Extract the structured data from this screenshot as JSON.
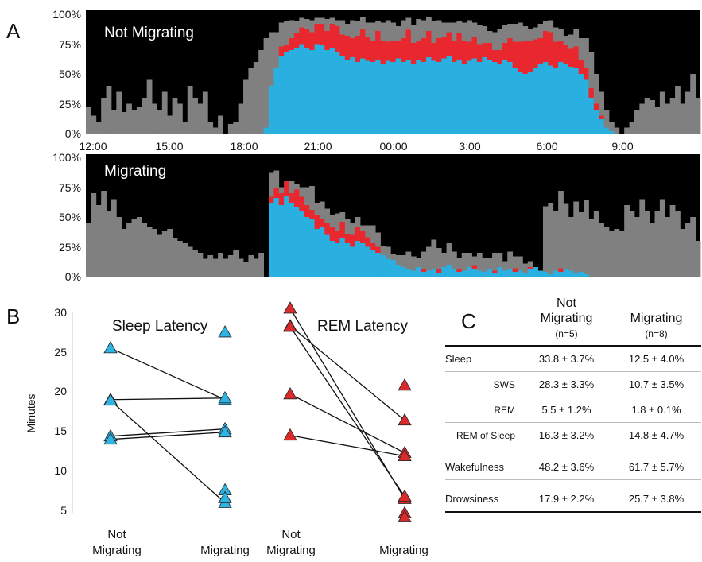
{
  "colors": {
    "background": "#000000",
    "wake": "#808080",
    "sws": "#29b0e0",
    "rem": "#e8282e",
    "marker_blue": "#2fb3e3",
    "marker_red": "#d92b2b"
  },
  "panel_a": {
    "letter": "A",
    "y_ticks": [
      "100%",
      "75%",
      "50%",
      "25%",
      "0%"
    ],
    "x_ticks": [
      "12:00",
      "15:00",
      "18:00",
      "21:00",
      "00:00",
      "3:00",
      "6:00",
      "9:00"
    ]
  },
  "panel_b": {
    "letter": "B",
    "ylabel": "Minutes",
    "y_ticks": [
      "30",
      "25",
      "20",
      "15",
      "10",
      "5"
    ],
    "cat_not_line1": "Not",
    "cat_not_line2": "Migrating",
    "cat_mig": "Migrating"
  },
  "table": {
    "letter": "C",
    "col1_line1": "Not",
    "col1_line2": "Migrating",
    "col1_n": "(n=5)",
    "col2": "Migrating",
    "col2_n": "(n=8)",
    "rows": [
      {
        "label": "Sleep",
        "not": "33.8 ± 3.7%",
        "mig": "12.5 ± 4.0%"
      },
      {
        "label": "SWS",
        "not": "28.3 ± 3.3%",
        "mig": "10.7 ± 3.5%"
      },
      {
        "label": "REM",
        "not": "5.5 ± 1.2%",
        "mig": "1.8 ± 0.1%"
      },
      {
        "label": "REM of Sleep",
        "not": "16.3 ± 3.2%",
        "mig": "14.8 ± 4.7%"
      },
      {
        "label": "Wakefulness",
        "not": "48.2 ± 3.6%",
        "mig": "61.7 ± 5.7%"
      },
      {
        "label": "Drowsiness",
        "not": "17.9 ± 2.2%",
        "mig": "25.7 ± 3.8%"
      }
    ]
  },
  "chart_data": [
    {
      "type": "area",
      "title": "Not Migrating",
      "x_range_hours": [
        12,
        36
      ],
      "ylim": [
        0,
        100
      ],
      "bin_hours": 0.2,
      "series": [
        {
          "name": "SWS",
          "values": [
            0,
            0,
            0,
            0,
            0,
            0,
            0,
            0,
            0,
            0,
            0,
            0,
            0,
            0,
            0,
            0,
            0,
            0,
            0,
            0,
            0,
            0,
            0,
            0,
            0,
            0,
            0,
            0,
            0,
            0,
            0,
            0,
            0,
            0,
            0,
            5,
            40,
            55,
            65,
            68,
            70,
            72,
            75,
            72,
            70,
            75,
            74,
            70,
            72,
            68,
            65,
            62,
            64,
            60,
            63,
            61,
            60,
            62,
            58,
            61,
            60,
            63,
            60,
            62,
            58,
            62,
            60,
            64,
            61,
            60,
            63,
            65,
            60,
            62,
            58,
            61,
            63,
            60,
            64,
            62,
            60,
            58,
            62,
            60,
            55,
            52,
            50,
            52,
            55,
            58,
            60,
            57,
            55,
            60,
            58,
            56,
            55,
            50,
            45,
            30,
            20,
            12,
            5,
            2,
            0,
            0,
            0,
            0,
            0,
            0,
            0,
            0,
            0,
            0,
            0,
            0,
            0,
            0,
            0,
            0,
            0
          ]
        },
        {
          "name": "REM",
          "values": [
            0,
            0,
            0,
            0,
            0,
            0,
            0,
            0,
            0,
            0,
            0,
            0,
            0,
            0,
            0,
            0,
            0,
            0,
            0,
            0,
            0,
            0,
            0,
            0,
            0,
            0,
            0,
            0,
            0,
            0,
            0,
            0,
            0,
            0,
            0,
            0,
            0,
            0,
            8,
            6,
            10,
            12,
            14,
            16,
            15,
            17,
            18,
            16,
            20,
            22,
            18,
            20,
            16,
            22,
            25,
            20,
            18,
            24,
            20,
            16,
            18,
            15,
            20,
            25,
            18,
            16,
            20,
            22,
            15,
            20,
            18,
            20,
            18,
            22,
            20,
            16,
            18,
            15,
            12,
            14,
            10,
            12,
            14,
            20,
            22,
            25,
            28,
            26,
            24,
            22,
            26,
            28,
            22,
            18,
            16,
            15,
            18,
            12,
            10,
            8,
            5,
            3,
            0,
            0,
            0,
            0,
            0,
            0,
            0,
            0,
            0,
            0,
            0,
            0,
            0,
            0,
            0,
            0,
            0,
            0,
            0
          ]
        },
        {
          "name": "Wake",
          "values": [
            22,
            15,
            10,
            30,
            40,
            20,
            35,
            18,
            25,
            20,
            22,
            30,
            45,
            25,
            20,
            35,
            15,
            30,
            25,
            10,
            40,
            30,
            25,
            35,
            10,
            5,
            15,
            0,
            8,
            10,
            25,
            45,
            55,
            60,
            70,
            75,
            45,
            30,
            20,
            20,
            15,
            10,
            8,
            8,
            10,
            5,
            5,
            10,
            5,
            5,
            12,
            10,
            15,
            12,
            10,
            12,
            15,
            8,
            15,
            18,
            15,
            12,
            15,
            10,
            15,
            18,
            15,
            12,
            18,
            15,
            12,
            8,
            15,
            10,
            15,
            18,
            12,
            16,
            14,
            10,
            15,
            18,
            15,
            12,
            15,
            16,
            12,
            10,
            10,
            12,
            8,
            10,
            12,
            10,
            8,
            12,
            15,
            18,
            25,
            30,
            25,
            20,
            15,
            8,
            5,
            0,
            5,
            10,
            20,
            25,
            30,
            28,
            22,
            35,
            25,
            30,
            40,
            25,
            35,
            50,
            30
          ]
        }
      ]
    },
    {
      "type": "area",
      "title": "Migrating",
      "x_range_hours": [
        12,
        36
      ],
      "ylim": [
        0,
        100
      ],
      "bin_hours": 0.2,
      "series": [
        {
          "name": "SWS",
          "values": [
            0,
            0,
            0,
            0,
            0,
            0,
            0,
            0,
            0,
            0,
            0,
            0,
            0,
            0,
            0,
            0,
            0,
            0,
            0,
            0,
            0,
            0,
            0,
            0,
            0,
            0,
            0,
            0,
            0,
            0,
            0,
            0,
            0,
            0,
            0,
            0,
            62,
            66,
            60,
            68,
            62,
            58,
            55,
            50,
            48,
            40,
            42,
            35,
            30,
            28,
            32,
            28,
            25,
            30,
            28,
            25,
            22,
            20,
            18,
            15,
            14,
            10,
            8,
            6,
            5,
            8,
            4,
            5,
            6,
            3,
            8,
            10,
            6,
            4,
            5,
            8,
            6,
            5,
            4,
            6,
            3,
            8,
            5,
            6,
            4,
            5,
            3,
            6,
            8,
            5,
            4,
            2,
            5,
            4,
            6,
            5,
            3,
            4,
            2,
            0,
            0,
            0,
            0,
            0,
            0,
            0,
            0,
            0,
            0,
            0,
            0,
            0,
            0,
            0,
            0,
            0,
            0,
            0,
            0,
            0,
            0
          ]
        },
        {
          "name": "REM",
          "values": [
            0,
            0,
            0,
            0,
            0,
            0,
            0,
            0,
            0,
            0,
            0,
            0,
            0,
            0,
            0,
            0,
            0,
            0,
            0,
            0,
            0,
            0,
            0,
            0,
            0,
            0,
            0,
            0,
            0,
            0,
            0,
            0,
            0,
            0,
            0,
            0,
            5,
            8,
            10,
            12,
            8,
            15,
            12,
            10,
            8,
            12,
            6,
            10,
            12,
            10,
            14,
            8,
            10,
            12,
            10,
            8,
            6,
            5,
            0,
            0,
            0,
            0,
            0,
            0,
            0,
            0,
            2,
            0,
            0,
            3,
            0,
            0,
            0,
            2,
            0,
            0,
            3,
            0,
            0,
            0,
            2,
            0,
            0,
            0,
            3,
            0,
            0,
            2,
            0,
            0,
            0,
            0,
            0,
            3,
            0,
            0,
            0,
            0,
            0,
            0,
            0,
            0,
            0,
            0,
            0,
            0,
            0,
            0,
            0,
            0,
            0,
            0,
            0,
            0,
            0,
            0,
            0,
            0,
            0,
            0,
            0
          ]
        },
        {
          "name": "Wake",
          "values": [
            45,
            70,
            60,
            72,
            55,
            65,
            50,
            40,
            45,
            48,
            50,
            45,
            42,
            40,
            35,
            38,
            40,
            32,
            30,
            28,
            25,
            22,
            20,
            15,
            18,
            15,
            20,
            15,
            18,
            22,
            15,
            12,
            18,
            15,
            20,
            0,
            20,
            15,
            5,
            0,
            10,
            5,
            8,
            15,
            20,
            10,
            15,
            12,
            10,
            15,
            8,
            12,
            10,
            8,
            5,
            10,
            15,
            12,
            8,
            10,
            5,
            8,
            10,
            15,
            12,
            8,
            15,
            20,
            25,
            18,
            12,
            18,
            15,
            10,
            15,
            12,
            8,
            15,
            12,
            10,
            15,
            12,
            8,
            15,
            10,
            12,
            8,
            5,
            0,
            0,
            55,
            60,
            50,
            65,
            55,
            45,
            60,
            50,
            62,
            48,
            55,
            45,
            42,
            38,
            40,
            38,
            60,
            55,
            50,
            65,
            55,
            45,
            55,
            65,
            50,
            60,
            55,
            40,
            45,
            50,
            30
          ]
        }
      ]
    },
    {
      "type": "scatter",
      "title": "Sleep Latency",
      "ylabel": "Minutes",
      "categories": [
        "Not Migrating",
        "Migrating"
      ],
      "ylim": [
        3,
        30
      ],
      "series": [
        {
          "values": [
            25.5,
            19.0
          ]
        },
        {
          "values": [
            19.0,
            19.2
          ]
        },
        {
          "values": [
            18.9,
            6.0
          ]
        },
        {
          "values": [
            14.4,
            15.3
          ]
        },
        {
          "values": [
            14.0,
            14.9
          ]
        },
        {
          "values": [
            null,
            27.5
          ]
        },
        {
          "values": [
            null,
            7.6
          ]
        },
        {
          "values": [
            null,
            6.6
          ]
        }
      ]
    },
    {
      "type": "scatter",
      "title": "REM Latency",
      "categories": [
        "Not Migrating",
        "Migrating"
      ],
      "ylim": [
        3,
        30
      ],
      "series": [
        {
          "values": [
            30.5,
            6.5
          ]
        },
        {
          "values": [
            28.3,
            16.4
          ]
        },
        {
          "values": [
            28.2,
            6.8
          ]
        },
        {
          "values": [
            19.7,
            12.3
          ]
        },
        {
          "values": [
            14.5,
            11.9
          ]
        },
        {
          "values": [
            null,
            20.8
          ]
        },
        {
          "values": [
            null,
            4.7
          ]
        },
        {
          "values": [
            null,
            4.2
          ]
        }
      ]
    }
  ]
}
